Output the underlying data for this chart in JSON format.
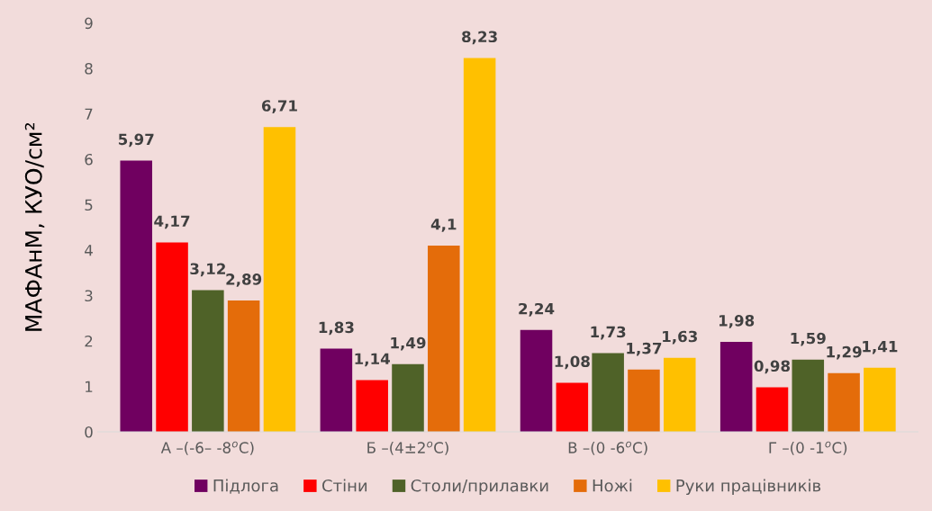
{
  "chart_data": {
    "type": "bar",
    "ylabel": "МАФАнМ, КУО/см²",
    "categories": [
      "А –(-6– -8$^{o}$C)",
      "Б –(4±2$^{o}$C)",
      "В –(0 -6$^{o}$C)",
      "Г –(0 -1$^{o}$C)"
    ],
    "series": [
      {
        "name": "Підлога",
        "color": "#700060",
        "values": [
          5.97,
          1.83,
          2.24,
          1.98
        ],
        "value_labels": [
          "5,97",
          "1,83",
          "2,24",
          "1,98"
        ]
      },
      {
        "name": "Стіни",
        "color": "#ff0000",
        "values": [
          4.17,
          1.14,
          1.08,
          0.98
        ],
        "value_labels": [
          "4,17",
          "1,14",
          "1,08",
          "0,98"
        ]
      },
      {
        "name": "Столи/прилавки",
        "color": "#4f6228",
        "values": [
          3.12,
          1.49,
          1.73,
          1.59
        ],
        "value_labels": [
          "3,12",
          "1,49",
          "1,73",
          "1,59"
        ]
      },
      {
        "name": "Ножі",
        "color": "#e46c0a",
        "values": [
          2.89,
          4.1,
          1.37,
          1.29
        ],
        "value_labels": [
          "2,89",
          "4,1",
          "1,37",
          "1,29"
        ]
      },
      {
        "name": "Руки працівників",
        "color": "#ffc000",
        "values": [
          6.71,
          8.23,
          1.63,
          1.41
        ],
        "value_labels": [
          "6,71",
          "8,23",
          "1,63",
          "1,41"
        ]
      }
    ],
    "ylim": [
      0,
      9
    ],
    "yticks": [
      0,
      1,
      2,
      3,
      4,
      5,
      6,
      7,
      8,
      9
    ],
    "grid": false,
    "legend": "bottom"
  }
}
